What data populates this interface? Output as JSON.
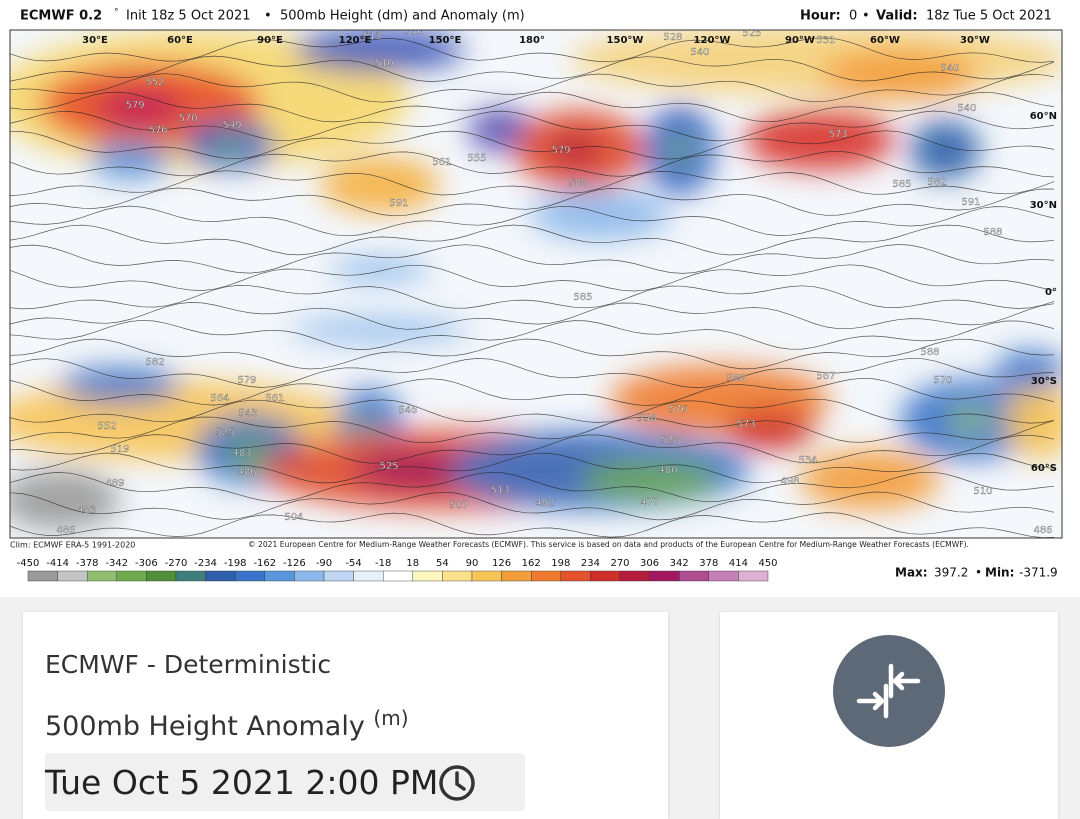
{
  "header": {
    "model": "ECMWF 0.2",
    "degree": "°",
    "init": "Init 18z 5 Oct 2021",
    "sep": "•",
    "product": "500mb Height (dm) and Anomaly (m)",
    "hour_label": "Hour:",
    "hour": "0",
    "valid_label": "Valid:",
    "valid": "18z Tue 5 Oct 2021"
  },
  "map": {
    "longitudes": [
      "30°E",
      "60°E",
      "90°E",
      "120°E",
      "150°E",
      "180°",
      "150°W",
      "120°W",
      "90°W",
      "60°W",
      "30°W"
    ],
    "latitudes": [
      "60°N",
      "30°N",
      "0°",
      "30°S",
      "60°S"
    ],
    "contour_labels": [
      579,
      552,
      576,
      570,
      549,
      513,
      516,
      510,
      555,
      561,
      591,
      579,
      588,
      528,
      540,
      525,
      531,
      540,
      540,
      573,
      585,
      582,
      591,
      588,
      585,
      588,
      582,
      579,
      564,
      543,
      561,
      552,
      525,
      519,
      483,
      486,
      489,
      483,
      486,
      504,
      525,
      507,
      513,
      492,
      576,
      573,
      588,
      570,
      558,
      528,
      480,
      477,
      498,
      510,
      486,
      567,
      534,
      546
    ]
  },
  "footer": {
    "clim": "Clim: ECMWF ERA-5 1991-2020",
    "copyright": "© 2021 European Centre for Medium-Range Weather Forecasts (ECMWF). This service is based on data and products of the European Centre for Medium-Range Weather Forecasts (ECMWF).",
    "max_label": "Max:",
    "max": 397.2,
    "min_label": "Min:",
    "min": -371.9
  },
  "colorbar": {
    "ticks": [
      -450,
      -414,
      -378,
      -342,
      -306,
      -270,
      -234,
      -198,
      -162,
      -126,
      -90,
      -54,
      -18,
      18,
      54,
      90,
      126,
      162,
      198,
      234,
      270,
      306,
      342,
      378,
      414,
      450
    ],
    "colors": [
      "#9a9a9a",
      "#c4c4c4",
      "#8fbf6e",
      "#6faa4e",
      "#4f8f3a",
      "#3f7f7a",
      "#2c5fa8",
      "#3a74c8",
      "#5b95dc",
      "#8cb8ea",
      "#bcd6f3",
      "#e6f0fb",
      "#ffffff",
      "#fdf5c0",
      "#fbe28a",
      "#f7c458",
      "#f39c3a",
      "#ee7a2e",
      "#e4512a",
      "#cf2e2a",
      "#b41c3c",
      "#a01860",
      "#b04c90",
      "#c880b8",
      "#ddb0d4"
    ]
  },
  "card": {
    "title": "ECMWF - Deterministic",
    "subtitle": "500mb Height Anomaly",
    "unit": "(m)",
    "datetime": "Tue Oct 5 2021 2:00 PM"
  }
}
